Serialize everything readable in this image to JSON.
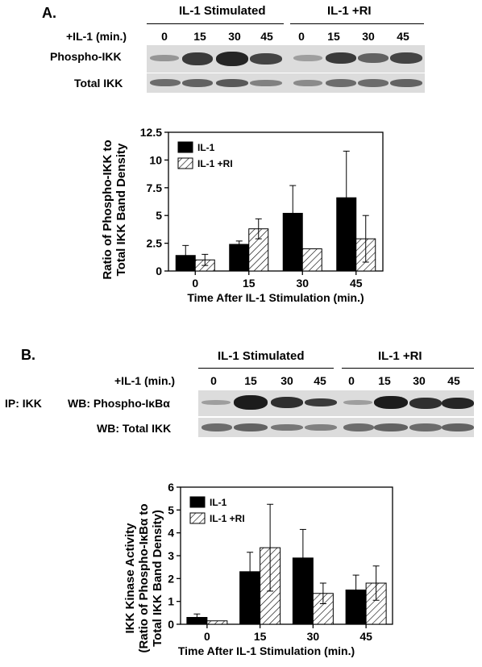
{
  "panel_a": {
    "label": "A.",
    "group1": "IL-1 Stimulated",
    "group2": "IL-1 +RI",
    "time_label": "+IL-1 (min.)",
    "lanes": [
      "0",
      "15",
      "30",
      "45",
      "0",
      "15",
      "30",
      "45"
    ],
    "row1_label": "Phospho-IKK",
    "row2_label": "Total IKK"
  },
  "panel_b": {
    "label": "B.",
    "group1": "IL-1 Stimulated",
    "group2": "IL-1 +RI",
    "time_label": "+IL-1 (min.)",
    "lanes": [
      "0",
      "15",
      "30",
      "45",
      "0",
      "15",
      "30",
      "45"
    ],
    "ip_label": "IP: IKK",
    "row1_label": "WB: Phospho-IκBα",
    "row2_label": "WB: Total IKK"
  },
  "chart_data": [
    {
      "type": "bar",
      "categories": [
        "0",
        "15",
        "30",
        "45"
      ],
      "series": [
        {
          "name": "IL-1",
          "values": [
            1.4,
            2.4,
            5.2,
            6.6
          ],
          "errors": [
            0.9,
            0.3,
            2.5,
            4.2
          ],
          "fill": "#000000"
        },
        {
          "name": "IL-1 +RI",
          "values": [
            1.0,
            3.8,
            2.0,
            2.9
          ],
          "errors": [
            0.5,
            0.9,
            0,
            2.1
          ],
          "fill": "hatch"
        }
      ],
      "yticks": [
        "0",
        "2.5",
        "5",
        "7.5",
        "10",
        "12.5"
      ],
      "ylim": [
        0,
        12.5
      ],
      "xlabel": "Time After IL-1 Stimulation (min.)",
      "ylabel": [
        "Ratio of Phospho-IKK to",
        "Total IKK Band Density"
      ],
      "legend_placement": "top-left"
    },
    {
      "type": "bar",
      "categories": [
        "0",
        "15",
        "30",
        "45"
      ],
      "series": [
        {
          "name": "IL-1",
          "values": [
            0.3,
            2.3,
            2.9,
            1.5
          ],
          "errors": [
            0.15,
            0.85,
            1.25,
            0.65
          ],
          "fill": "#000000"
        },
        {
          "name": "IL-1 +RI",
          "values": [
            0.15,
            3.35,
            1.35,
            1.8
          ],
          "errors": [
            0,
            1.9,
            0.45,
            0.75
          ],
          "fill": "hatch"
        }
      ],
      "yticks": [
        "0",
        "1",
        "2",
        "3",
        "4",
        "5",
        "6"
      ],
      "ylim": [
        0,
        6
      ],
      "xlabel": "Time After IL-1 Stimulation (min.)",
      "ylabel": [
        "IKK Kinase Activity",
        "(Ratio of Phospho-IκBα to",
        "Total IKK Band Density)"
      ],
      "legend_placement": "top-left"
    }
  ]
}
